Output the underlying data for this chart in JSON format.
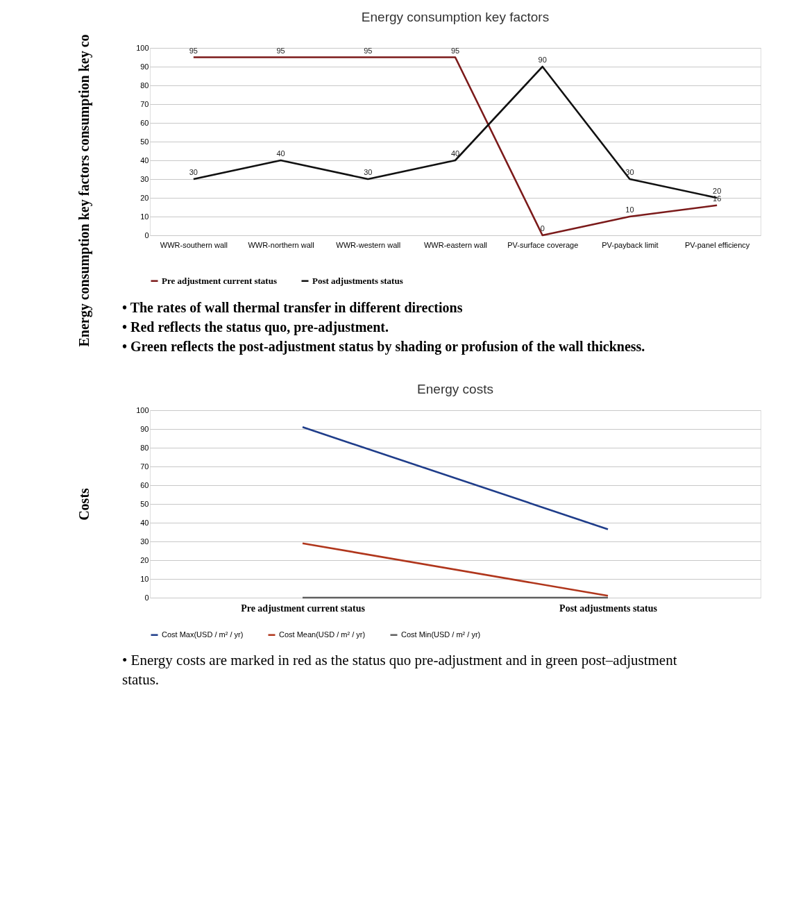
{
  "chart_data": [
    {
      "type": "line",
      "title": "Energy consumption key factors",
      "ylabel": "Energy consumption key factors consumption key co",
      "categories": [
        "WWR-southern wall",
        "WWR-northern wall",
        "WWR-western wall",
        "WWR-eastern wall",
        "PV-surface coverage",
        "PV-payback limit",
        "PV-panel efficiency"
      ],
      "series": [
        {
          "name": "Pre adjustment current status",
          "color": "#7b1a1a",
          "values": [
            95,
            95,
            95,
            95,
            0,
            10,
            16
          ]
        },
        {
          "name": "Post adjustments status",
          "color": "#111111",
          "values": [
            30,
            40,
            30,
            40,
            90,
            30,
            20
          ]
        }
      ],
      "ylim": [
        0,
        100
      ],
      "yticks": [
        0,
        10,
        20,
        30,
        40,
        50,
        60,
        70,
        80,
        90,
        100
      ],
      "grid": "y",
      "legend": "bottom",
      "data_labels": true,
      "marker": "none",
      "line_style": "solid",
      "annotations": [
        "• The rates of wall thermal transfer in different directions",
        "• Red reflects the status quo, pre-adjustment.",
        "• Green reflects the post-adjustment status by shading or profusion of the wall thickness."
      ]
    },
    {
      "type": "line",
      "title": "Energy costs",
      "ylabel": "Costs",
      "categories": [
        "Pre adjustment  current status",
        "Post adjustments status"
      ],
      "series": [
        {
          "name": "Cost Max(USD / m² / yr)",
          "color": "#1f3d8a",
          "values": [
            91,
            36.5
          ]
        },
        {
          "name": "Cost Mean(USD / m² / yr)",
          "color": "#b0361c",
          "values": [
            29,
            1
          ]
        },
        {
          "name": "Cost Min(USD / m² / yr)",
          "color": "#5f5f5f",
          "values": [
            0,
            0
          ]
        }
      ],
      "ylim": [
        0,
        100
      ],
      "yticks": [
        0,
        10,
        20,
        30,
        40,
        50,
        60,
        70,
        80,
        90,
        100
      ],
      "grid": "y",
      "legend": "bottom",
      "marker": "none",
      "line_style": "solid",
      "annotations": [
        "• Energy costs are marked in red as the status quo pre-adjustment and in green post–adjustment status."
      ]
    }
  ]
}
